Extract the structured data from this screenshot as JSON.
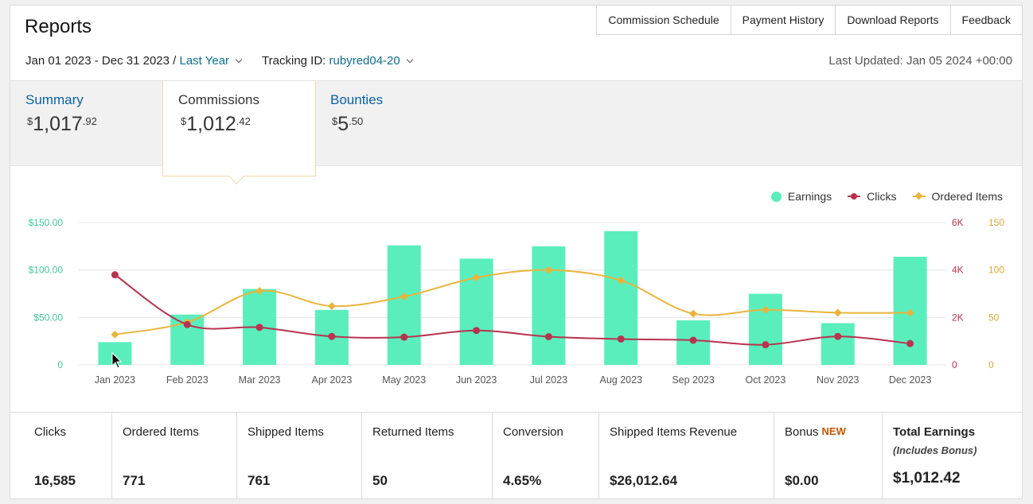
{
  "header": {
    "title": "Reports",
    "nav": [
      "Commission Schedule",
      "Payment History",
      "Download Reports",
      "Feedback"
    ],
    "date_range": "Jan 01 2023 - Dec 31 2023 /",
    "range_preset": "Last Year",
    "tracking_label": "Tracking ID:",
    "tracking_id": "rubyred04-20",
    "last_updated": "Last Updated: Jan 05 2024 +00:00"
  },
  "tabs": {
    "summary": {
      "label": "Summary",
      "symbol": "$",
      "amount": "1,017",
      "cents": ".92"
    },
    "commissions": {
      "label": "Commissions",
      "symbol": "$",
      "amount": "1,012",
      "cents": ".42"
    },
    "bounties": {
      "label": "Bounties",
      "symbol": "$",
      "amount": "5",
      "cents": ".50"
    }
  },
  "legend": {
    "earnings": "Earnings",
    "clicks": "Clicks",
    "ordered": "Ordered Items"
  },
  "colors": {
    "earnings": "#5aeebd",
    "clicks": "#b8334f",
    "ordered": "#e9b43c",
    "link": "#0b62a4",
    "new_badge": "#c45500"
  },
  "chart_data": {
    "type": "bar",
    "categories": [
      "Jan 2023",
      "Feb 2023",
      "Mar 2023",
      "Apr 2023",
      "May 2023",
      "Jun 2023",
      "Jul 2023",
      "Aug 2023",
      "Sep 2023",
      "Oct 2023",
      "Nov 2023",
      "Dec 2023"
    ],
    "series": [
      {
        "name": "Earnings",
        "type": "bar",
        "axis": "left",
        "values": [
          24,
          53,
          80,
          58,
          126,
          112,
          125,
          141,
          47,
          75,
          44,
          114
        ]
      },
      {
        "name": "Clicks",
        "type": "line",
        "axis": "right-1",
        "values": [
          3800,
          1700,
          1580,
          1200,
          1170,
          1450,
          1190,
          1090,
          1040,
          850,
          1200,
          900
        ]
      },
      {
        "name": "Ordered Items",
        "type": "line",
        "axis": "right-2",
        "values": [
          32,
          45,
          78,
          62,
          72,
          92,
          100,
          89,
          54,
          58,
          55,
          55
        ]
      }
    ],
    "y_left": {
      "ticks": [
        "$150.00",
        "$100.00",
        "$50.00",
        "0"
      ],
      "range": [
        0,
        150
      ]
    },
    "y_right_1": {
      "ticks": [
        "6K",
        "4K",
        "2K",
        "0"
      ],
      "range": [
        0,
        6000
      ]
    },
    "y_right_2": {
      "ticks": [
        "150",
        "100",
        "50",
        "0"
      ],
      "range": [
        0,
        150
      ]
    },
    "grid": true,
    "legend_position": "top-right"
  },
  "stats": [
    {
      "label": "Clicks",
      "value": "16,585"
    },
    {
      "label": "Ordered Items",
      "value": "771"
    },
    {
      "label": "Shipped Items",
      "value": "761"
    },
    {
      "label": "Returned Items",
      "value": "50"
    },
    {
      "label": "Conversion",
      "value": "4.65%"
    },
    {
      "label": "Shipped Items Revenue",
      "value": "$26,012.64"
    },
    {
      "label": "Bonus",
      "badge": "NEW",
      "value": "$0.00"
    },
    {
      "label": "Total Earnings",
      "sub": "(Includes Bonus)",
      "value": "$1,012.42"
    }
  ]
}
